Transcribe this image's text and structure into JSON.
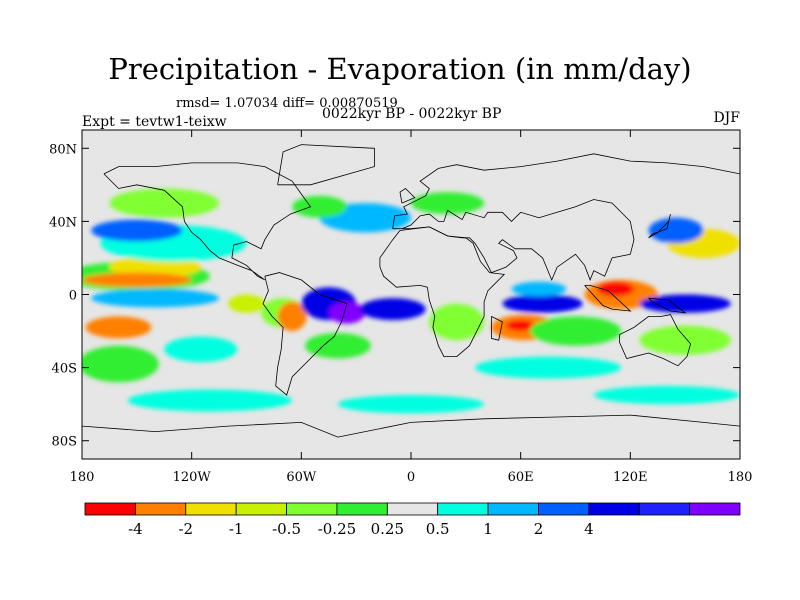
{
  "title": "Precipitation - Evaporation (in mm/day)",
  "stats": "rmsd= 1.07034 diff= 0.00870519",
  "period": "0022kyr BP - 0022kyr BP",
  "experiment": "Expt = tevtw1-teixw",
  "season": "DJF",
  "map": {
    "projection": "cylindrical-equidistant",
    "lon_range": [
      -180,
      180
    ],
    "lat_range": [
      -90,
      90
    ],
    "land_background": "#e6e6e6",
    "coastline_color": "#000000",
    "lat_ticks": [
      {
        "value": 80,
        "label": "80N"
      },
      {
        "value": 40,
        "label": "40N"
      },
      {
        "value": 0,
        "label": "0"
      },
      {
        "value": -40,
        "label": "40S"
      },
      {
        "value": -80,
        "label": "80S"
      }
    ],
    "lon_ticks": [
      {
        "value": -180,
        "label": "180"
      },
      {
        "value": -120,
        "label": "120W"
      },
      {
        "value": -60,
        "label": "60W"
      },
      {
        "value": 0,
        "label": "0"
      },
      {
        "value": 60,
        "label": "60E"
      },
      {
        "value": 120,
        "label": "120E"
      },
      {
        "value": 180,
        "label": "180"
      }
    ]
  },
  "colorbar": {
    "colors": [
      "#ff0000",
      "#ff8000",
      "#f0e000",
      "#c8f000",
      "#80ff30",
      "#30ee30",
      "#e6e6e6",
      "#00ffe0",
      "#00b8ff",
      "#0060ff",
      "#0000e6",
      "#2020ff",
      "#8000ff"
    ],
    "labels": [
      "-4",
      "-2",
      "-1",
      "-0.5",
      "-0.25",
      "0.25",
      "0.5",
      "1",
      "2",
      "4"
    ],
    "label_after_box": [
      1,
      2,
      3,
      4,
      5,
      6,
      7,
      8,
      9,
      10
    ]
  },
  "fields": [
    {
      "lon": -150,
      "lat": 10,
      "rx": 40,
      "ry": 8,
      "color": "#30ee30"
    },
    {
      "lon": -140,
      "lat": 15,
      "rx": 25,
      "ry": 6,
      "color": "#f0e000"
    },
    {
      "lon": -150,
      "lat": 8,
      "rx": 30,
      "ry": 4,
      "color": "#ff8000"
    },
    {
      "lon": -140,
      "lat": -2,
      "rx": 35,
      "ry": 5,
      "color": "#00b8ff"
    },
    {
      "lon": -160,
      "lat": -18,
      "rx": 18,
      "ry": 6,
      "color": "#ff8000"
    },
    {
      "lon": -130,
      "lat": 28,
      "rx": 40,
      "ry": 10,
      "color": "#00ffe0"
    },
    {
      "lon": -150,
      "lat": 35,
      "rx": 25,
      "ry": 6,
      "color": "#0060ff"
    },
    {
      "lon": -135,
      "lat": 50,
      "rx": 30,
      "ry": 8,
      "color": "#80ff30"
    },
    {
      "lon": -160,
      "lat": -38,
      "rx": 22,
      "ry": 10,
      "color": "#30ee30"
    },
    {
      "lon": -115,
      "lat": -30,
      "rx": 20,
      "ry": 7,
      "color": "#00ffe0"
    },
    {
      "lon": -110,
      "lat": -58,
      "rx": 45,
      "ry": 6,
      "color": "#00ffe0"
    },
    {
      "lon": -90,
      "lat": -5,
      "rx": 10,
      "ry": 5,
      "color": "#c8f000"
    },
    {
      "lon": -70,
      "lat": -10,
      "rx": 12,
      "ry": 8,
      "color": "#80ff30"
    },
    {
      "lon": -65,
      "lat": -12,
      "rx": 8,
      "ry": 8,
      "color": "#ff8000"
    },
    {
      "lon": -45,
      "lat": -5,
      "rx": 15,
      "ry": 9,
      "color": "#0000e6"
    },
    {
      "lon": -35,
      "lat": -10,
      "rx": 10,
      "ry": 6,
      "color": "#8000ff"
    },
    {
      "lon": -40,
      "lat": -28,
      "rx": 18,
      "ry": 7,
      "color": "#30ee30"
    },
    {
      "lon": -10,
      "lat": -8,
      "rx": 18,
      "ry": 6,
      "color": "#0000e6"
    },
    {
      "lon": -25,
      "lat": 42,
      "rx": 25,
      "ry": 8,
      "color": "#00b8ff"
    },
    {
      "lon": -50,
      "lat": 48,
      "rx": 15,
      "ry": 6,
      "color": "#30ee30"
    },
    {
      "lon": 20,
      "lat": 50,
      "rx": 20,
      "ry": 6,
      "color": "#30ee30"
    },
    {
      "lon": 25,
      "lat": -15,
      "rx": 15,
      "ry": 10,
      "color": "#80ff30"
    },
    {
      "lon": 62,
      "lat": -18,
      "rx": 18,
      "ry": 7,
      "color": "#ff8000"
    },
    {
      "lon": 60,
      "lat": -17,
      "rx": 8,
      "ry": 3,
      "color": "#ff0000"
    },
    {
      "lon": 72,
      "lat": -5,
      "rx": 22,
      "ry": 5,
      "color": "#0000e6"
    },
    {
      "lon": 70,
      "lat": 3,
      "rx": 15,
      "ry": 4,
      "color": "#00b8ff"
    },
    {
      "lon": 90,
      "lat": -20,
      "rx": 25,
      "ry": 8,
      "color": "#30ee30"
    },
    {
      "lon": 75,
      "lat": -40,
      "rx": 40,
      "ry": 6,
      "color": "#00ffe0"
    },
    {
      "lon": 115,
      "lat": 0,
      "rx": 20,
      "ry": 8,
      "color": "#ff8000"
    },
    {
      "lon": 112,
      "lat": 3,
      "rx": 10,
      "ry": 4,
      "color": "#ff0000"
    },
    {
      "lon": 150,
      "lat": -5,
      "rx": 25,
      "ry": 5,
      "color": "#0000e6"
    },
    {
      "lon": 160,
      "lat": 28,
      "rx": 20,
      "ry": 8,
      "color": "#f0e000"
    },
    {
      "lon": 145,
      "lat": 35,
      "rx": 15,
      "ry": 7,
      "color": "#0060ff"
    },
    {
      "lon": 150,
      "lat": -25,
      "rx": 25,
      "ry": 8,
      "color": "#80ff30"
    },
    {
      "lon": 140,
      "lat": -55,
      "rx": 40,
      "ry": 5,
      "color": "#00ffe0"
    },
    {
      "lon": 0,
      "lat": -60,
      "rx": 40,
      "ry": 5,
      "color": "#00ffe0"
    }
  ]
}
